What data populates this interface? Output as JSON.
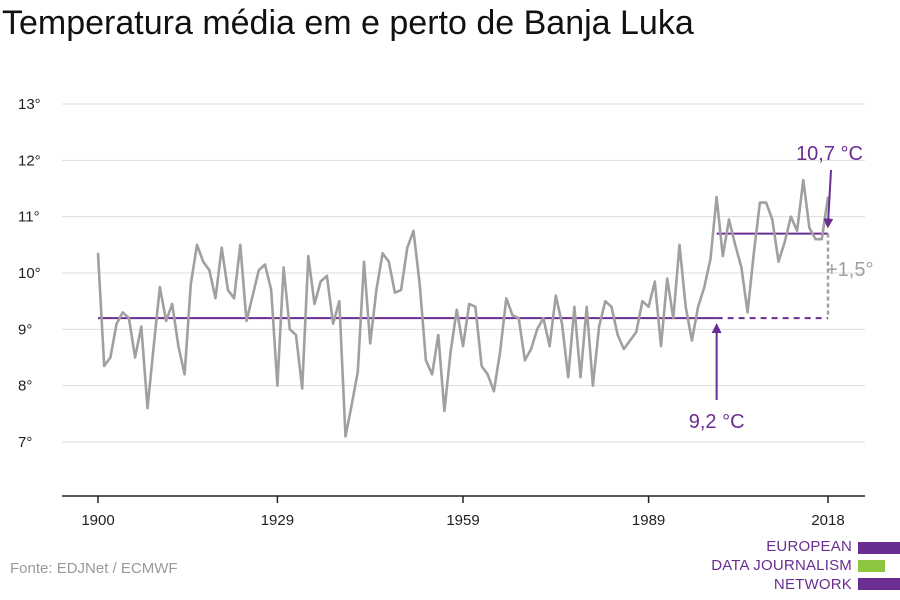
{
  "title": "Temperatura média em e perto de Banja Luka",
  "source": "Fonte: EDJNet / ECMWF",
  "logo": {
    "line1": "EUROPEAN",
    "line2": "DATA JOURNALISM",
    "line3": "NETWORK"
  },
  "colors": {
    "series": "#a0a0a0",
    "accent": "#6a2d91",
    "grid": "#dddddd",
    "axis": "#222222",
    "logo_green": "#8cc63f"
  },
  "chart_data": {
    "type": "line",
    "title": "Temperatura média em e perto de Banja Luka",
    "xlabel": "",
    "ylabel": "",
    "xlim": [
      1900,
      2018
    ],
    "ylim": [
      6,
      13
    ],
    "x_ticks": [
      {
        "value": 1900,
        "label": "1900"
      },
      {
        "value": 1929,
        "label": "1929"
      },
      {
        "value": 1959,
        "label": "1959"
      },
      {
        "value": 1989,
        "label": "1989"
      },
      {
        "value": 2018,
        "label": "2018"
      }
    ],
    "y_ticks": [
      {
        "value": 7,
        "label": "7°"
      },
      {
        "value": 8,
        "label": "8°"
      },
      {
        "value": 9,
        "label": "9°"
      },
      {
        "value": 10,
        "label": "10°"
      },
      {
        "value": 11,
        "label": "11°"
      },
      {
        "value": 12,
        "label": "12°"
      },
      {
        "value": 13,
        "label": "13°"
      }
    ],
    "grid": true,
    "series": [
      {
        "x_start": 1900,
        "values": [
          10.35,
          8.35,
          8.5,
          9.1,
          9.3,
          9.2,
          8.5,
          9.05,
          7.6,
          8.7,
          9.75,
          9.15,
          9.45,
          8.7,
          8.2,
          9.8,
          10.5,
          10.2,
          10.05,
          9.55,
          10.45,
          9.7,
          9.55,
          10.5,
          9.15,
          9.6,
          10.05,
          10.15,
          9.7,
          8.0,
          10.1,
          9.0,
          8.9,
          7.95,
          10.3,
          9.45,
          9.85,
          9.95,
          9.1,
          9.5,
          7.1,
          7.65,
          8.25,
          10.2,
          8.75,
          9.7,
          10.35,
          10.2,
          9.65,
          9.7,
          10.45,
          10.75,
          9.8,
          8.45,
          8.2,
          8.9,
          7.55,
          8.6,
          9.35,
          8.7,
          9.45,
          9.4,
          8.35,
          8.2,
          7.9,
          8.6,
          9.55,
          9.25,
          9.2,
          8.45,
          8.65,
          9.0,
          9.2,
          8.7,
          9.6,
          9.1,
          8.15,
          9.4,
          8.15,
          9.4,
          8.0,
          9.05,
          9.5,
          9.4,
          8.9,
          8.65,
          8.8,
          8.95,
          9.5,
          9.4,
          9.85,
          8.7,
          9.9,
          9.2,
          10.5,
          9.4,
          8.8,
          9.4,
          9.75,
          10.25,
          11.35,
          10.3,
          10.95,
          10.5,
          10.1,
          9.3,
          10.35,
          11.25,
          11.25,
          10.95,
          10.2,
          10.55,
          11.0,
          10.75,
          11.65,
          10.8,
          10.6,
          10.6,
          11.35
        ]
      }
    ],
    "annotations": [
      {
        "label": "9,2 °C",
        "value": 9.2,
        "x_from": 1900,
        "x_to": 2018
      },
      {
        "label": "10,7 °C",
        "value": 10.7,
        "x_from": 2000,
        "x_to": 2018
      },
      {
        "label": "+1,5°"
      }
    ]
  }
}
